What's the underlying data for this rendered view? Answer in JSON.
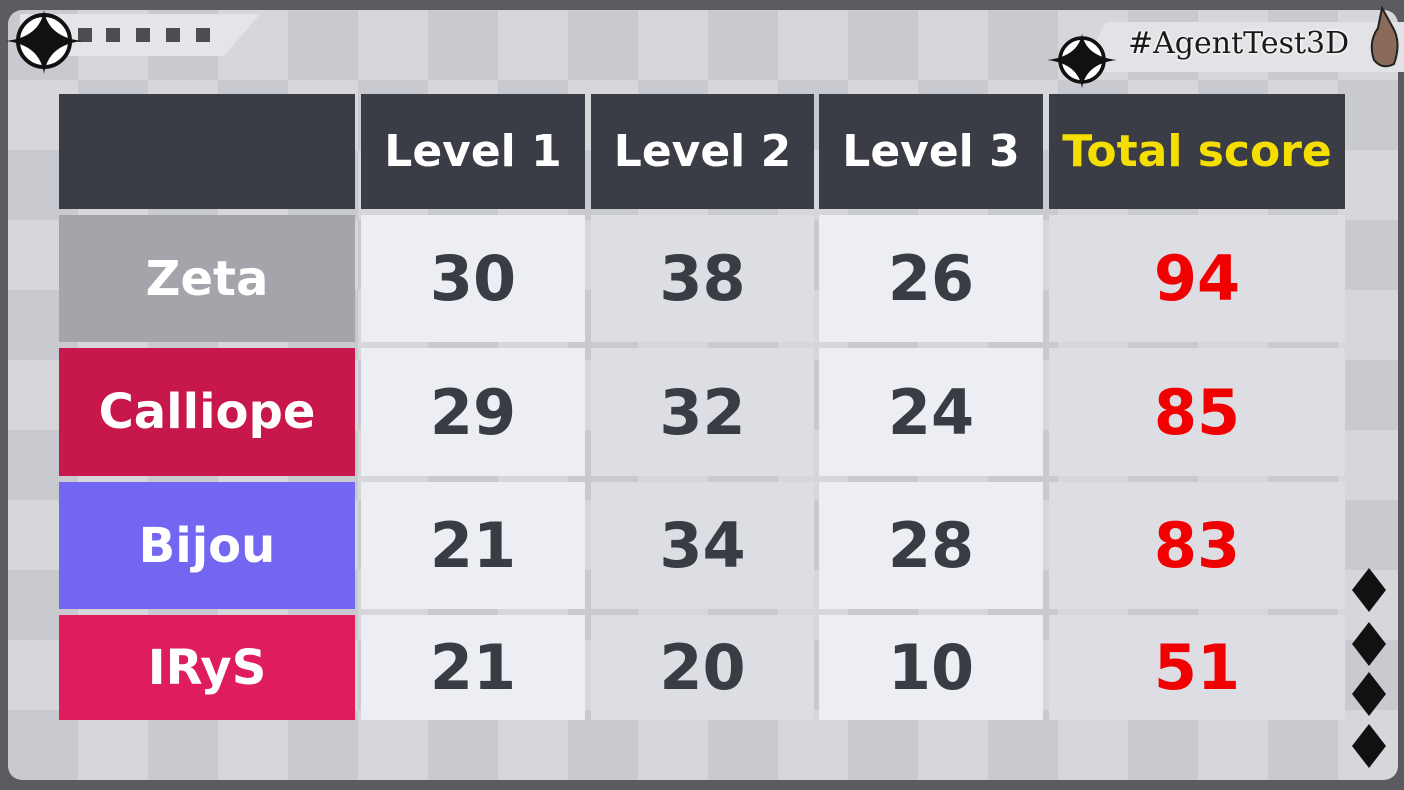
{
  "overlay": {
    "hashtag": "#AgentTest3D"
  },
  "table": {
    "headers": [
      "",
      "Level 1",
      "Level 2",
      "Level 3",
      "Total score"
    ],
    "rows": [
      {
        "name": "Zeta",
        "color": "#a3a5ab",
        "scores": [
          "30",
          "38",
          "26"
        ],
        "total": "94"
      },
      {
        "name": "Calliope",
        "color": "#c8174a",
        "scores": [
          "29",
          "32",
          "24"
        ],
        "total": "85"
      },
      {
        "name": "Bijou",
        "color": "#7366f0",
        "scores": [
          "21",
          "34",
          "28"
        ],
        "total": "83"
      },
      {
        "name": "IRyS",
        "color": "#df1d5c",
        "scores": [
          "21",
          "20",
          "10"
        ],
        "total": "51"
      }
    ]
  },
  "colors": {
    "header_bg": "#3a3d45",
    "total_header": "#f5df00",
    "total_value": "#f00000"
  }
}
